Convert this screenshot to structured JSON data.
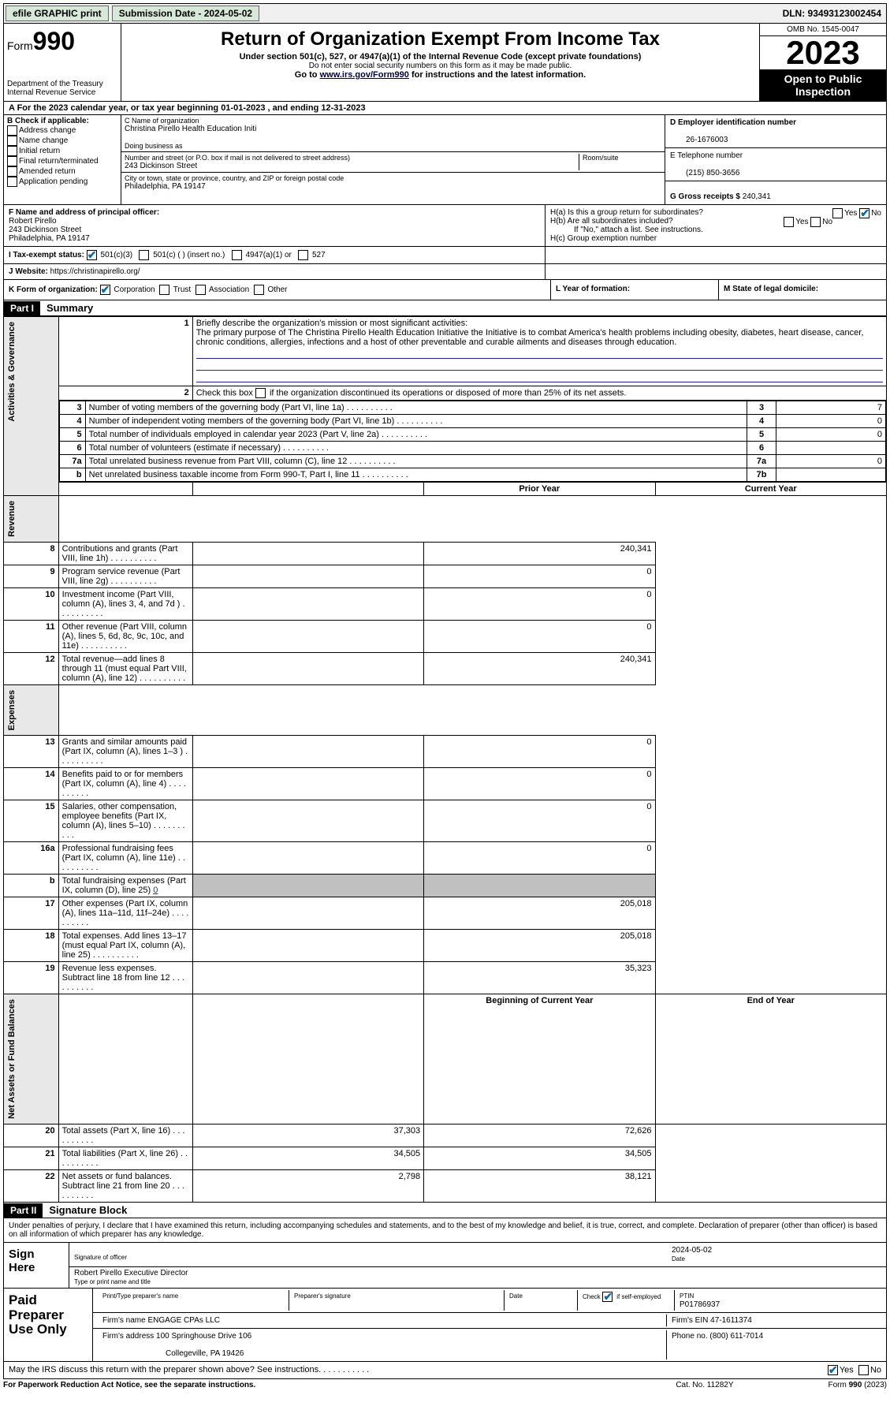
{
  "topbar": {
    "efile": "efile GRAPHIC print",
    "submission_label": "Submission Date - 2024-05-02",
    "dln": "DLN: 93493123002454"
  },
  "header": {
    "form_prefix": "Form",
    "form_number": "990",
    "dept": "Department of the Treasury\nInternal Revenue Service",
    "title": "Return of Organization Exempt From Income Tax",
    "sub1": "Under section 501(c), 527, or 4947(a)(1) of the Internal Revenue Code (except private foundations)",
    "sub2": "Do not enter social security numbers on this form as it may be made public.",
    "sub3_prefix": "Go to ",
    "sub3_link": "www.irs.gov/Form990",
    "sub3_suffix": " for instructions and the latest information.",
    "omb": "OMB No. 1545-0047",
    "year": "2023",
    "otp": "Open to Public Inspection"
  },
  "cal_year": "A For the 2023 calendar year, or tax year beginning 01-01-2023   , and ending 12-31-2023",
  "checkboxes": {
    "heading": "B Check if applicable:",
    "items": [
      "Address change",
      "Name change",
      "Initial return",
      "Final return/terminated",
      "Amended return",
      "Application pending"
    ]
  },
  "org": {
    "c_label": "C Name of organization",
    "name": "Christina Pirello Health Education Initi",
    "dba_label": "Doing business as",
    "dba": "",
    "addr_label": "Number and street (or P.O. box if mail is not delivered to street address)",
    "room_label": "Room/suite",
    "street": "243 Dickinson Street",
    "city_label": "City or town, state or province, country, and ZIP or foreign postal code",
    "city": "Philadelphia, PA  19147"
  },
  "col_d": {
    "d_label": "D Employer identification number",
    "ein": "26-1676003",
    "e_label": "E Telephone number",
    "phone": "(215) 850-3656",
    "g_label": "G Gross receipts $",
    "gross": "240,341"
  },
  "f_block": {
    "label": "F Name and address of principal officer:",
    "name": "Robert Pirello",
    "street": "243 Dickinson Street",
    "city": "Philadelphia, PA  19147"
  },
  "h_block": {
    "ha": "H(a)  Is this a group return for subordinates?",
    "hb": "H(b)  Are all subordinates included?",
    "hb_note": "If \"No,\" attach a list. See instructions.",
    "hc": "H(c)  Group exemption number  "
  },
  "i_row": {
    "label": "I  Tax-exempt status:",
    "opts": [
      "501(c)(3)",
      "501(c) (  ) (insert no.)",
      "4947(a)(1) or",
      "527"
    ]
  },
  "j_row": {
    "label": "J  Website: ",
    "url": "https://christinapirello.org/"
  },
  "k_row": {
    "label": "K Form of organization:",
    "opts": [
      "Corporation",
      "Trust",
      "Association",
      "Other"
    ],
    "l_label": "L Year of formation:",
    "l_val": "",
    "m_label": "M State of legal domicile:",
    "m_val": ""
  },
  "part1": {
    "header": "Part I",
    "title": "Summary"
  },
  "mission": {
    "num": "1",
    "label": "Briefly describe the organization's mission or most significant activities:",
    "text": "The primary purpose of The Christina Pirello Health Education Initiative the Initiative is to combat America's health problems including obesity, diabetes, heart disease, cancer, chronic conditions, allergies, infections and a host of other preventable and curable ailments and diseases through education."
  },
  "line2": "Check this box         if the organization discontinued its operations or disposed of more than 25% of its net assets.",
  "gov_rows": [
    {
      "n": "3",
      "t": "Number of voting members of the governing body (Part VI, line 1a)",
      "ref": "3",
      "v": "7"
    },
    {
      "n": "4",
      "t": "Number of independent voting members of the governing body (Part VI, line 1b)",
      "ref": "4",
      "v": "0"
    },
    {
      "n": "5",
      "t": "Total number of individuals employed in calendar year 2023 (Part V, line 2a)",
      "ref": "5",
      "v": "0"
    },
    {
      "n": "6",
      "t": "Total number of volunteers (estimate if necessary)",
      "ref": "6",
      "v": ""
    },
    {
      "n": "7a",
      "t": "Total unrelated business revenue from Part VIII, column (C), line 12",
      "ref": "7a",
      "v": "0"
    },
    {
      "n": "b",
      "t": "Net unrelated business taxable income from Form 990-T, Part I, line 11",
      "ref": "7b",
      "v": ""
    }
  ],
  "year_headers": {
    "prior": "Prior Year",
    "current": "Current Year"
  },
  "rev_rows": [
    {
      "n": "8",
      "t": "Contributions and grants (Part VIII, line 1h)",
      "p": "",
      "c": "240,341"
    },
    {
      "n": "9",
      "t": "Program service revenue (Part VIII, line 2g)",
      "p": "",
      "c": "0"
    },
    {
      "n": "10",
      "t": "Investment income (Part VIII, column (A), lines 3, 4, and 7d )",
      "p": "",
      "c": "0"
    },
    {
      "n": "11",
      "t": "Other revenue (Part VIII, column (A), lines 5, 6d, 8c, 9c, 10c, and 11e)",
      "p": "",
      "c": "0"
    },
    {
      "n": "12",
      "t": "Total revenue—add lines 8 through 11 (must equal Part VIII, column (A), line 12)",
      "p": "",
      "c": "240,341"
    }
  ],
  "exp_rows": [
    {
      "n": "13",
      "t": "Grants and similar amounts paid (Part IX, column (A), lines 1–3 )",
      "p": "",
      "c": "0"
    },
    {
      "n": "14",
      "t": "Benefits paid to or for members (Part IX, column (A), line 4)",
      "p": "",
      "c": "0"
    },
    {
      "n": "15",
      "t": "Salaries, other compensation, employee benefits (Part IX, column (A), lines 5–10)",
      "p": "",
      "c": "0"
    },
    {
      "n": "16a",
      "t": "Professional fundraising fees (Part IX, column (A), line 11e)",
      "p": "",
      "c": "0"
    }
  ],
  "line16b": {
    "n": "b",
    "t": "Total fundraising expenses (Part IX, column (D), line 25) ",
    "link": "0"
  },
  "exp_rows2": [
    {
      "n": "17",
      "t": "Other expenses (Part IX, column (A), lines 11a–11d, 11f–24e)",
      "p": "",
      "c": "205,018"
    },
    {
      "n": "18",
      "t": "Total expenses. Add lines 13–17 (must equal Part IX, column (A), line 25)",
      "p": "",
      "c": "205,018"
    },
    {
      "n": "19",
      "t": "Revenue less expenses. Subtract line 18 from line 12",
      "p": "",
      "c": "35,323"
    }
  ],
  "na_headers": {
    "begin": "Beginning of Current Year",
    "end": "End of Year"
  },
  "na_rows": [
    {
      "n": "20",
      "t": "Total assets (Part X, line 16)",
      "p": "37,303",
      "c": "72,626"
    },
    {
      "n": "21",
      "t": "Total liabilities (Part X, line 26)",
      "p": "34,505",
      "c": "34,505"
    },
    {
      "n": "22",
      "t": "Net assets or fund balances. Subtract line 21 from line 20",
      "p": "2,798",
      "c": "38,121"
    }
  ],
  "side_labels": {
    "gov": "Activities & Governance",
    "rev": "Revenue",
    "exp": "Expenses",
    "na": "Net Assets or Fund Balances"
  },
  "part2": {
    "header": "Part II",
    "title": "Signature Block"
  },
  "declare": "Under penalties of perjury, I declare that I have examined this return, including accompanying schedules and statements, and to the best of my knowledge and belief, it is true, correct, and complete. Declaration of preparer (other than officer) is based on all information of which preparer has any knowledge.",
  "sign_here": "Sign Here",
  "sig_officer_lbl": "Signature of officer",
  "sig_officer_name": "Robert Pirello  Executive Director",
  "sig_type_lbl": "Type or print name and title",
  "sig_date_lbl": "Date",
  "sig_date": "2024-05-02",
  "paid": {
    "title": "Paid Preparer Use Only",
    "h1": "Print/Type preparer's name",
    "h2": "Preparer's signature",
    "h3": "Date",
    "h4_a": "Check",
    "h4_b": "if self-employed",
    "h5": "PTIN",
    "ptin": "P01786937",
    "firm_label": "Firm's name   ",
    "firm": "ENGAGE CPAs LLC",
    "ein_label": "Firm's EIN  ",
    "ein": "47-1611374",
    "addr_label": "Firm's address  ",
    "addr1": "100 Springhouse Drive 106",
    "addr2": "Collegeville, PA  19426",
    "phone_label": "Phone no. ",
    "phone": "(800) 611-7014"
  },
  "discuss": "May the IRS discuss this return with the preparer shown above? See instructions.",
  "footer": {
    "left": "For Paperwork Reduction Act Notice, see the separate instructions.",
    "mid": "Cat. No. 11282Y",
    "right_a": "Form ",
    "right_b": "990",
    "right_c": " (2023)"
  },
  "yn": {
    "yes": "Yes",
    "no": "No"
  }
}
